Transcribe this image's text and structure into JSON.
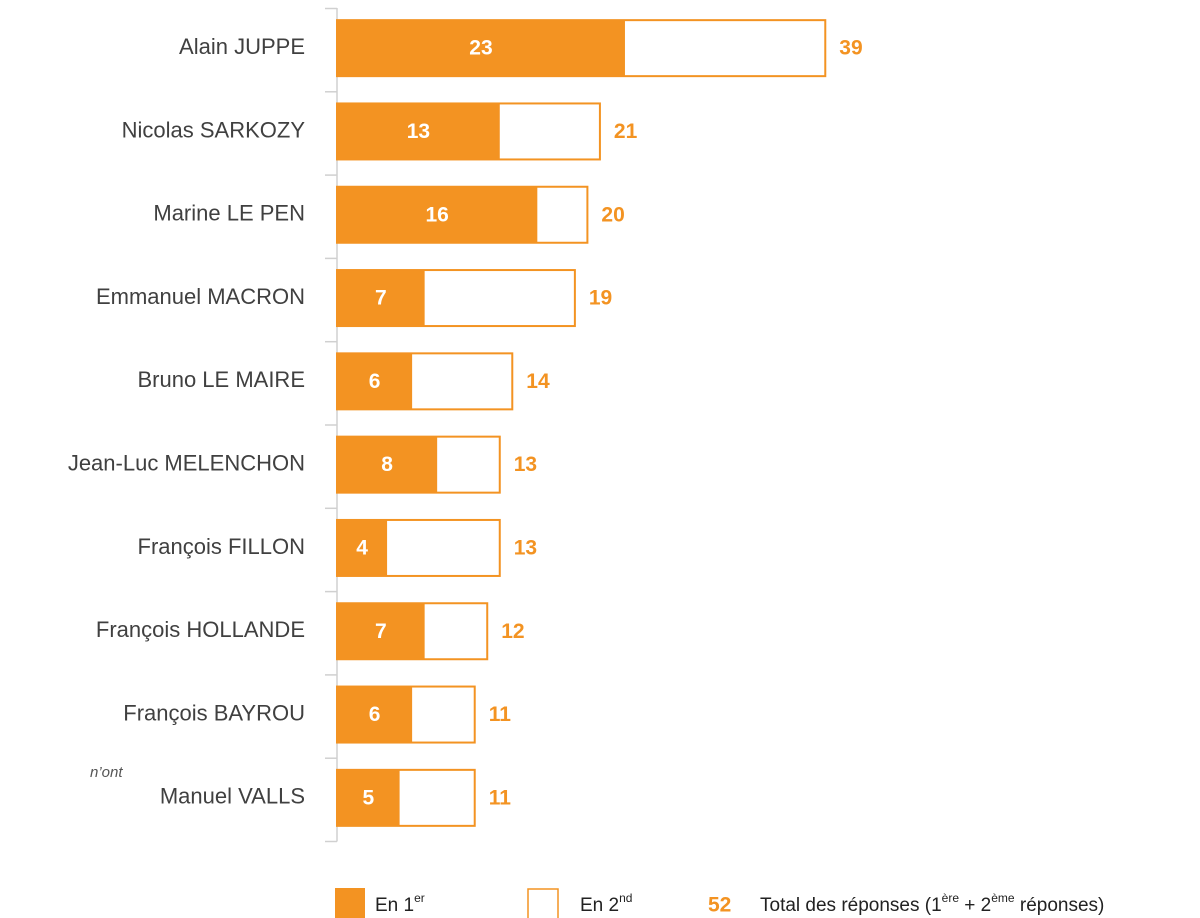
{
  "chart_data": {
    "type": "bar",
    "orientation": "horizontal",
    "categories": [
      "Alain JUPPE",
      "Nicolas SARKOZY",
      "Marine LE PEN",
      "Emmanuel MACRON",
      "Bruno LE MAIRE",
      "Jean-Luc MELENCHON",
      "François FILLON",
      "François HOLLANDE",
      "François BAYROU",
      "Manuel VALLS"
    ],
    "series": [
      {
        "color": "#f39322",
        "fill": "solid",
        "values": [
          23,
          13,
          16,
          7,
          6,
          8,
          4,
          7,
          6,
          5
        ]
      },
      {
        "color": "#f39322",
        "fill": "outline",
        "values": [
          39,
          21,
          20,
          19,
          14,
          13,
          13,
          12,
          11,
          11
        ]
      }
    ],
    "legend": [
      {
        "text": [
          "En 1",
          "er"
        ]
      },
      {
        "text": [
          "En 2",
          "nd"
        ]
      },
      {
        "sample": 52,
        "text": [
          "Total des réponses (1",
          "ère",
          " + 2",
          "ème",
          " réponses)"
        ]
      }
    ],
    "note": "n’ont"
  }
}
